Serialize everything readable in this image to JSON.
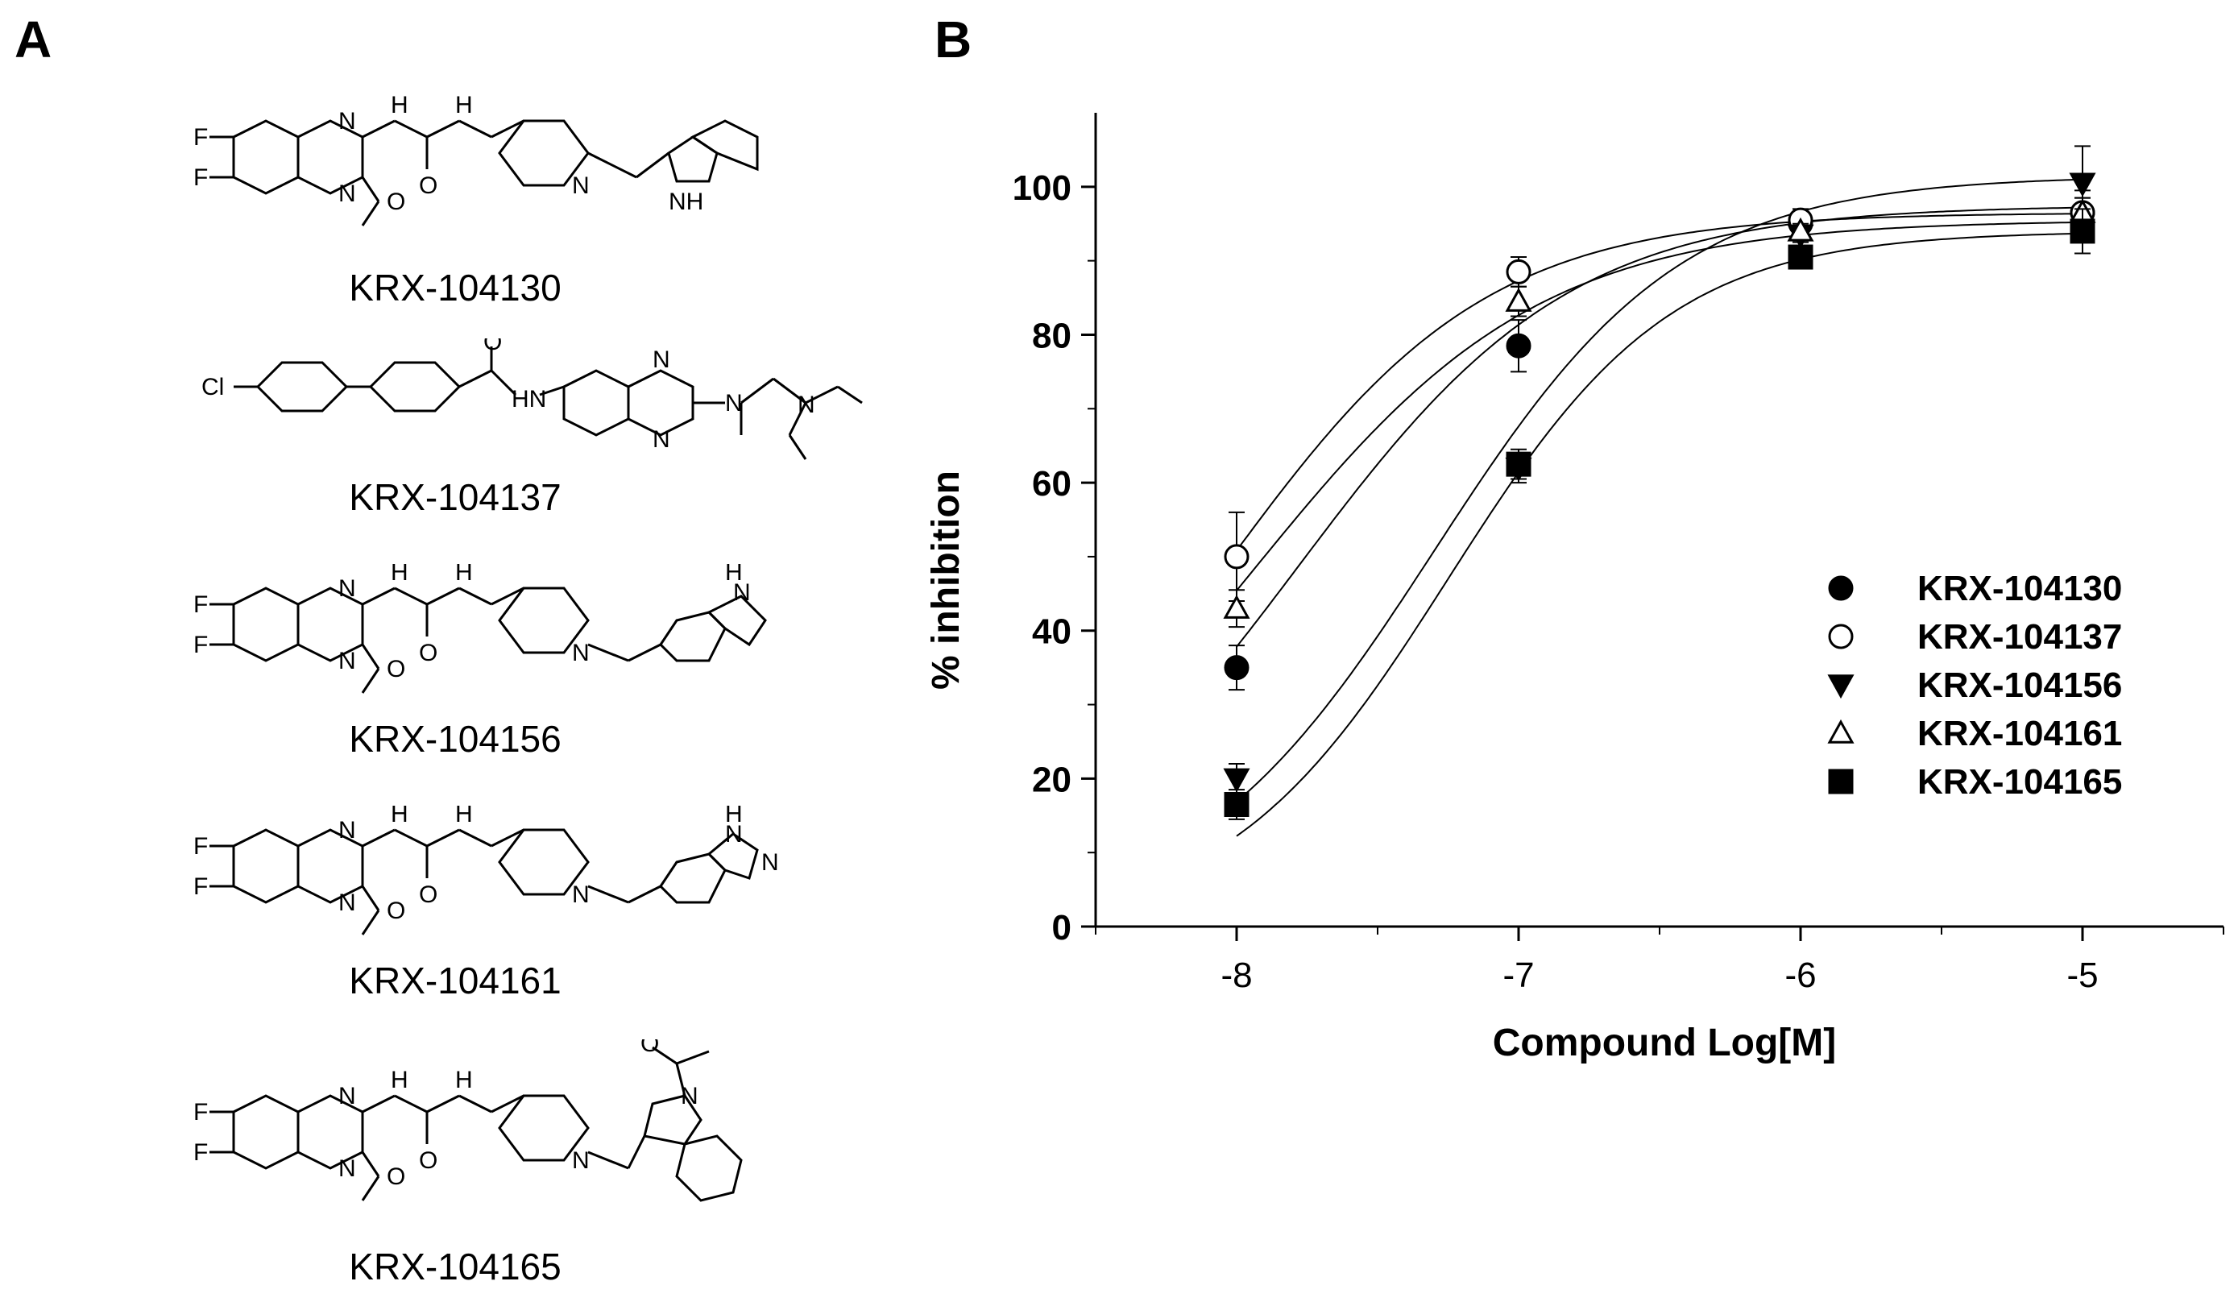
{
  "panels": {
    "a": "A",
    "b": "B"
  },
  "compounds": [
    {
      "label": "KRX-104130"
    },
    {
      "label": "KRX-104137"
    },
    {
      "label": "KRX-104156"
    },
    {
      "label": "KRX-104161"
    },
    {
      "label": "KRX-104165"
    }
  ],
  "atoms": {
    "F": "F",
    "N": "N",
    "H": "H",
    "O": "O",
    "Cl": "Cl",
    "HN": "HN",
    "NH": "NH"
  },
  "chart_data": {
    "type": "scatter",
    "title": "",
    "xlabel": "Compound Log[M]",
    "ylabel": "% inhibition",
    "xlim": [
      -8.5,
      -4.5
    ],
    "ylim": [
      0,
      110
    ],
    "xticks": [
      -8,
      -7,
      -6,
      -5
    ],
    "yticks": [
      0,
      20,
      40,
      60,
      80,
      100
    ],
    "grid": false,
    "legend_position": "bottom-right",
    "series": [
      {
        "name": "KRX-104130",
        "marker": "filled-circle",
        "x": [
          -8,
          -7,
          -6,
          -5
        ],
        "y": [
          35,
          78.5,
          95,
          96.5
        ],
        "err": [
          3,
          3.5,
          1.5,
          3
        ],
        "curve": {
          "bottom": 0,
          "top": 97.5,
          "logec50": -7.78,
          "hill": 0.9
        }
      },
      {
        "name": "KRX-104137",
        "marker": "open-circle",
        "x": [
          -8,
          -7,
          -6,
          -5
        ],
        "y": [
          50,
          88.5,
          95.5,
          96.5
        ],
        "err": [
          6,
          2,
          1.5,
          2
        ],
        "curve": {
          "bottom": 0,
          "top": 96.5,
          "logec50": -8.05,
          "hill": 0.93
        }
      },
      {
        "name": "KRX-104156",
        "marker": "filled-triangle-down",
        "x": [
          -8,
          -7,
          -6,
          -5
        ],
        "y": [
          20,
          62,
          93.5,
          100.5
        ],
        "err": [
          2,
          2,
          1,
          5
        ],
        "curve": {
          "bottom": 0,
          "top": 101.5,
          "logec50": -7.3,
          "hill": 1.0
        }
      },
      {
        "name": "KRX-104161",
        "marker": "open-triangle-up",
        "x": [
          -8,
          -7,
          -6,
          -5
        ],
        "y": [
          43,
          84.5,
          94,
          96.5
        ],
        "err": [
          2.5,
          2,
          1,
          2
        ],
        "curve": {
          "bottom": 0,
          "top": 95.5,
          "logec50": -7.95,
          "hill": 0.85
        }
      },
      {
        "name": "KRX-104165",
        "marker": "filled-square",
        "x": [
          -8,
          -7,
          -6,
          -5
        ],
        "y": [
          16.5,
          62.5,
          90.5,
          94
        ],
        "err": [
          2,
          2,
          1,
          3
        ],
        "curve": {
          "bottom": 0,
          "top": 94,
          "logec50": -7.25,
          "hill": 1.1
        }
      }
    ]
  }
}
